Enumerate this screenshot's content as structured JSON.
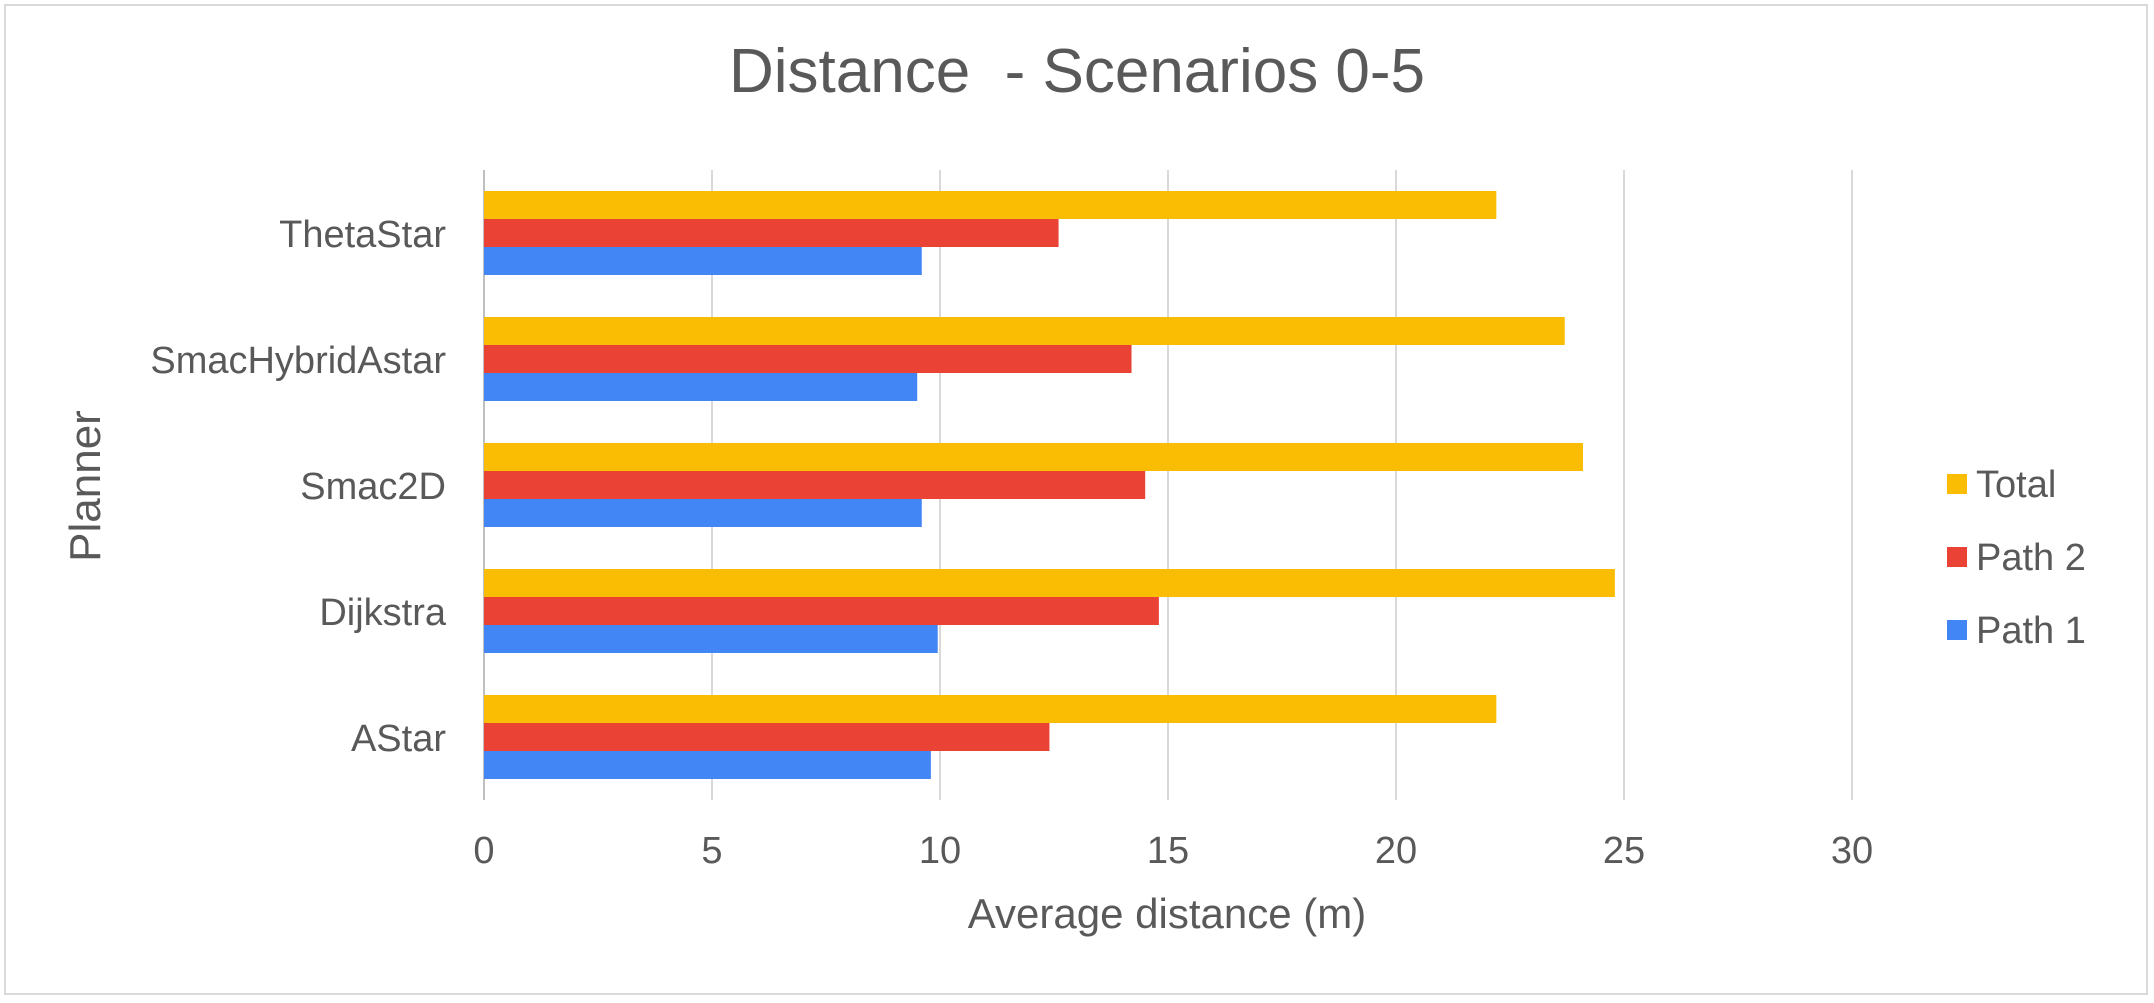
{
  "chart_data": {
    "type": "bar",
    "orientation": "horizontal",
    "title": "Distance  - Scenarios 0-5",
    "xlabel": "Average distance (m)",
    "ylabel": "Planner",
    "categories": [
      "AStar",
      "Dijkstra",
      "Smac2D",
      "SmacHybridAstar",
      "ThetaStar"
    ],
    "series": [
      {
        "name": "Path 1",
        "color": "#4285F4",
        "values": [
          9.8,
          9.95,
          9.6,
          9.5,
          9.6
        ]
      },
      {
        "name": "Path 2",
        "color": "#EA4335",
        "values": [
          12.4,
          14.8,
          14.5,
          14.2,
          12.6
        ]
      },
      {
        "name": "Total",
        "color": "#FBBC04",
        "values": [
          22.2,
          24.8,
          24.1,
          23.7,
          22.2
        ]
      }
    ],
    "xlim": [
      0,
      30
    ],
    "xticks": [
      "0",
      "5",
      "10",
      "15",
      "20",
      "25",
      "30"
    ],
    "grid": true,
    "legend_position": "right",
    "legend_order": [
      "Total",
      "Path 2",
      "Path 1"
    ]
  }
}
